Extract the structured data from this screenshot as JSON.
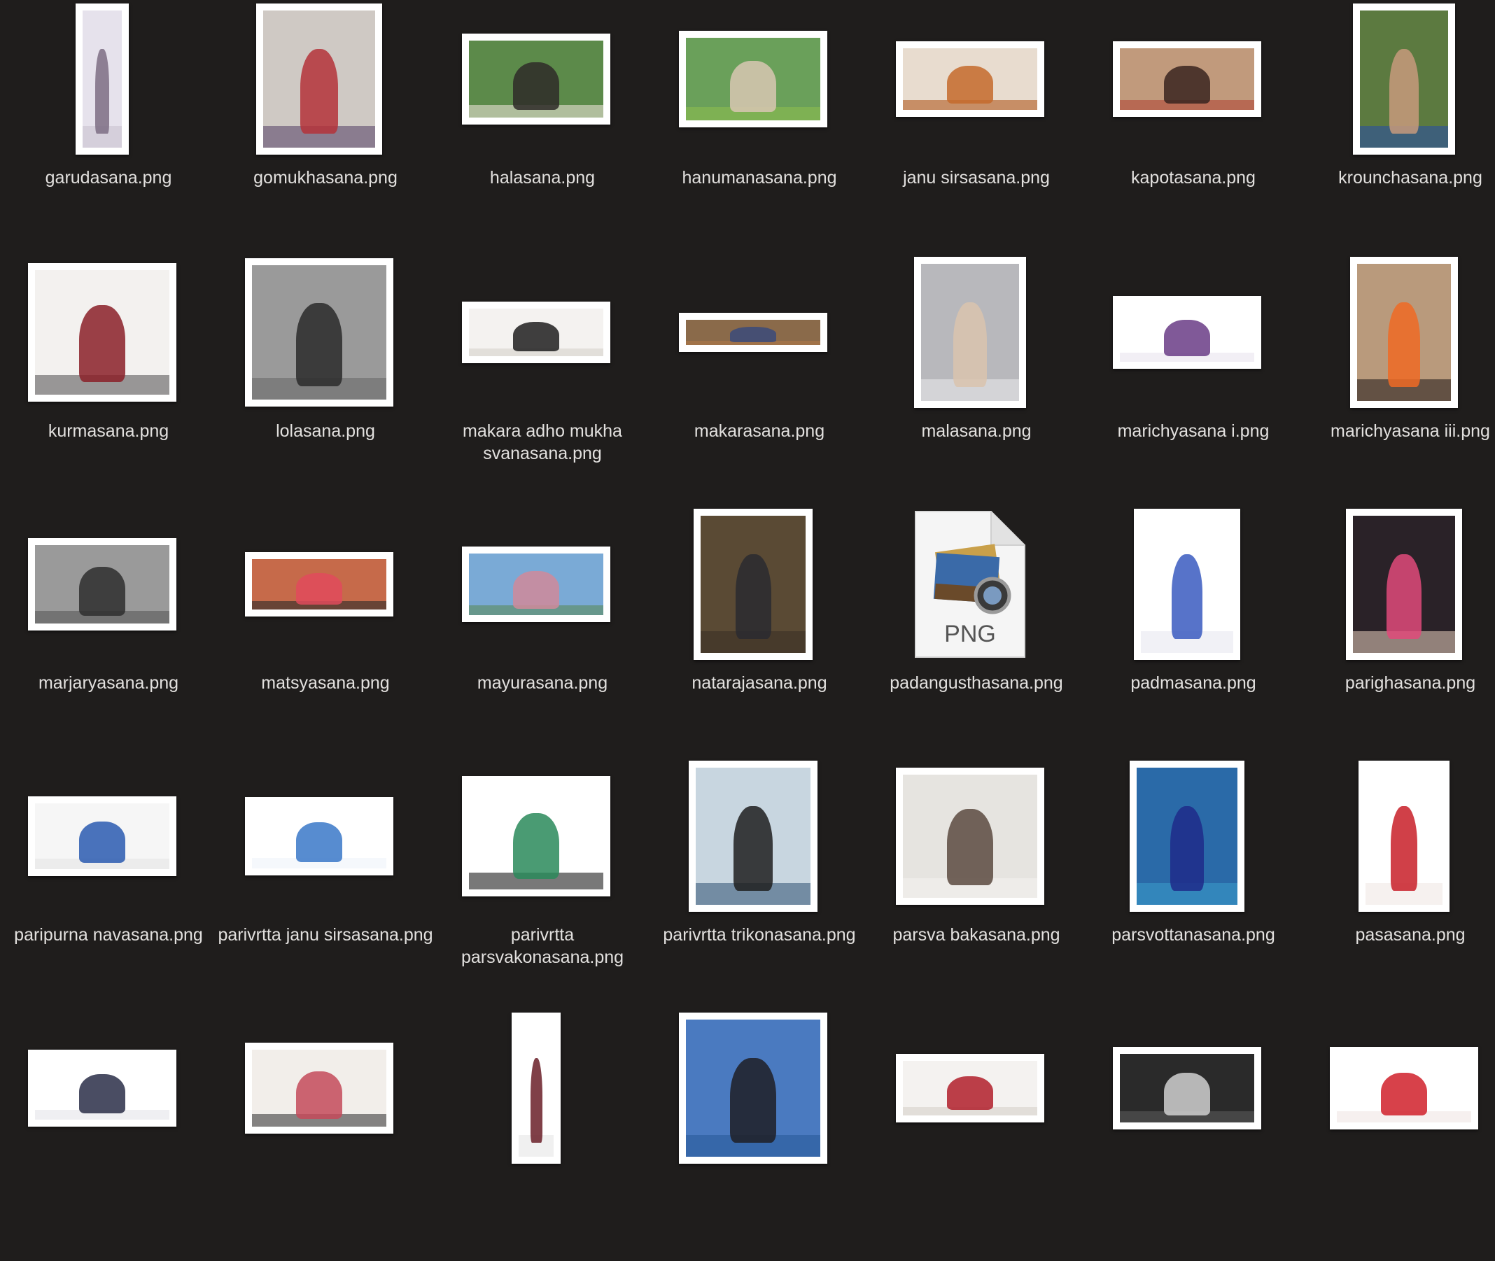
{
  "files": [
    {
      "name": "garudasana.png",
      "tw": 76,
      "th": 216,
      "bg": "#e6e2ec",
      "fig": "#7c6d84",
      "floor": "#c9c3d0"
    },
    {
      "name": "gomukhasana.png",
      "tw": 180,
      "th": 216,
      "bg": "#cfc9c4",
      "fig": "#b4333a",
      "floor": "#5c4a6d"
    },
    {
      "name": "halasana.png",
      "tw": 212,
      "th": 130,
      "bg": "#5c8a4a",
      "fig": "#2e2a28",
      "floor": "#e7e1d6"
    },
    {
      "name": "hanumanasana.png",
      "tw": 212,
      "th": 138,
      "bg": "#6aa05a",
      "fig": "#d8c7b3",
      "floor": "#8cbc4e"
    },
    {
      "name": "janu sirsasana.png",
      "tw": 212,
      "th": 108,
      "bg": "#e8dccf",
      "fig": "#c46a2c",
      "floor": "#b05a20"
    },
    {
      "name": "kapotasana.png",
      "tw": 212,
      "th": 108,
      "bg": "#c19a7c",
      "fig": "#3a2420",
      "floor": "#b04a38"
    },
    {
      "name": "krounchasana.png",
      "tw": 146,
      "th": 216,
      "bg": "#5c7a40",
      "fig": "#c79a7c",
      "floor": "#2a4fa0"
    },
    {
      "name": "kurmasana.png",
      "tw": 212,
      "th": 198,
      "bg": "#f3f1ef",
      "fig": "#8a2028",
      "floor": "#5c5a5a"
    },
    {
      "name": "lolasana.png",
      "tw": 212,
      "th": 212,
      "bg": "#9a9a9a",
      "fig": "#2a2a2a",
      "floor": "#6a6a6a"
    },
    {
      "name": "makara adho mukha svanasana.png",
      "tw": 212,
      "th": 88,
      "bg": "#f4f2f0",
      "fig": "#1e1e1e",
      "floor": "#d6d2cc"
    },
    {
      "name": "makarasana.png",
      "tw": 212,
      "th": 56,
      "bg": "#8a6a4a",
      "fig": "#3a4a7a",
      "floor": "#b07a4a"
    },
    {
      "name": "malasana.png",
      "tw": 160,
      "th": 216,
      "bg": "#b8b8bc",
      "fig": "#d9c3ae",
      "floor": "#e6e6ea"
    },
    {
      "name": "marichyasana i.png",
      "tw": 212,
      "th": 104,
      "bg": "#ffffff",
      "fig": "#6a3c86",
      "floor": "#eae4ee"
    },
    {
      "name": "marichyasana iii.png",
      "tw": 154,
      "th": 216,
      "bg": "#b99a7c",
      "fig": "#ee6a24",
      "floor": "#2a2220"
    },
    {
      "name": "marjaryasana.png",
      "tw": 212,
      "th": 132,
      "bg": "#9a9a9a",
      "fig": "#2e2e2e",
      "floor": "#5a5a5a"
    },
    {
      "name": "matsyasana.png",
      "tw": 212,
      "th": 92,
      "bg": "#c66a4a",
      "fig": "#e04a5c",
      "floor": "#2a2a2a"
    },
    {
      "name": "mayurasana.png",
      "tw": 212,
      "th": 108,
      "bg": "#7aaad6",
      "fig": "#d08a9a",
      "floor": "#5a8a5a"
    },
    {
      "name": "natarajasana.png",
      "tw": 170,
      "th": 216,
      "bg": "#5a4a34",
      "fig": "#2a2a30",
      "floor": "#3a3026"
    },
    {
      "name": "padangusthasana.png",
      "generic": true,
      "tag": "PNG"
    },
    {
      "name": "padmasana.png",
      "tw": 152,
      "th": 216,
      "bg": "#ffffff",
      "fig": "#3a5ac0",
      "floor": "#e8e8f0"
    },
    {
      "name": "parighasana.png",
      "tw": 166,
      "th": 216,
      "bg": "#2a2228",
      "fig": "#e04a7a",
      "floor": "#d8c2b0"
    },
    {
      "name": "paripurna navasana.png",
      "tw": 212,
      "th": 114,
      "bg": "#f6f6f6",
      "fig": "#2a5ab0",
      "floor": "#e6e6e6"
    },
    {
      "name": "parivrtta janu sirsasana.png",
      "tw": 212,
      "th": 112,
      "bg": "#ffffff",
      "fig": "#3a78c8",
      "floor": "#eef4fa"
    },
    {
      "name": "parivrtta parsvakonasana.png",
      "tw": 212,
      "th": 172,
      "bg": "#ffffff",
      "fig": "#2a8a5a",
      "floor": "#1e1e1e"
    },
    {
      "name": "parivrtta trikonasana.png",
      "tw": 184,
      "th": 216,
      "bg": "#c8d6e0",
      "fig": "#1e1e1e",
      "floor": "#3a5a7a"
    },
    {
      "name": "parsva bakasana.png",
      "tw": 212,
      "th": 196,
      "bg": "#e6e4e0",
      "fig": "#5a4a40",
      "floor": "#f4f2ee"
    },
    {
      "name": "parsvottanasana.png",
      "tw": 164,
      "th": 216,
      "bg": "#2a6aa8",
      "fig": "#1e2a8a",
      "floor": "#3a9ac8"
    },
    {
      "name": "pasasana.png",
      "tw": 130,
      "th": 216,
      "bg": "#ffffff",
      "fig": "#c81e28",
      "floor": "#f0e8e4"
    },
    {
      "name": "",
      "tw": 212,
      "th": 110,
      "bg": "#ffffff",
      "fig": "#2a2e48",
      "floor": "#e4e4ea",
      "partial": true
    },
    {
      "name": "",
      "tw": 212,
      "th": 130,
      "bg": "#f2eeea",
      "fig": "#c44a5a",
      "floor": "#3a3a3a",
      "partial": true
    },
    {
      "name": "",
      "tw": 70,
      "th": 216,
      "bg": "#ffffff",
      "fig": "#6a1e28",
      "floor": "#e6e6e6",
      "partial": true
    },
    {
      "name": "",
      "tw": 212,
      "th": 216,
      "bg": "#4a7ac0",
      "fig": "#1e1e24",
      "floor": "#2a5a9a",
      "partial": true
    },
    {
      "name": "",
      "tw": 212,
      "th": 98,
      "bg": "#f4f2f0",
      "fig": "#b01e2a",
      "floor": "#d6d0ca",
      "partial": true
    },
    {
      "name": "",
      "tw": 212,
      "th": 118,
      "bg": "#2a2a2a",
      "fig": "#d0d0d0",
      "floor": "#5a5a5a",
      "partial": true
    },
    {
      "name": "",
      "tw": 212,
      "th": 118,
      "bg": "#ffffff",
      "fig": "#d0202a",
      "floor": "#f0e6e4",
      "partial": true
    }
  ]
}
